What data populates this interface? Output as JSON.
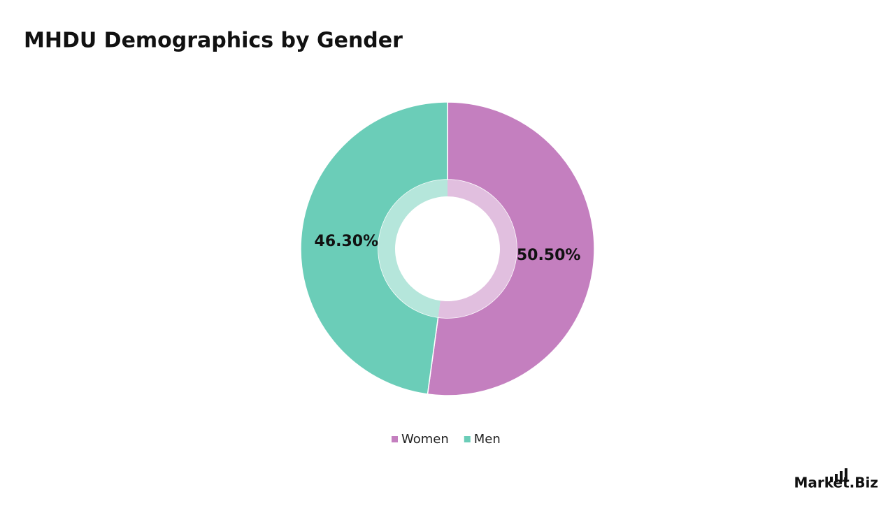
{
  "chart_data": {
    "type": "donut",
    "title": "MHDU Demographics by Gender",
    "categories": [
      "Women",
      "Men"
    ],
    "values": [
      50.5,
      46.3
    ],
    "value_labels": [
      "50.50%",
      "46.30%"
    ],
    "colors": [
      "#c47fbf",
      "#6bcdb8"
    ],
    "legend": "bottom"
  },
  "logo": "Market.Biz"
}
